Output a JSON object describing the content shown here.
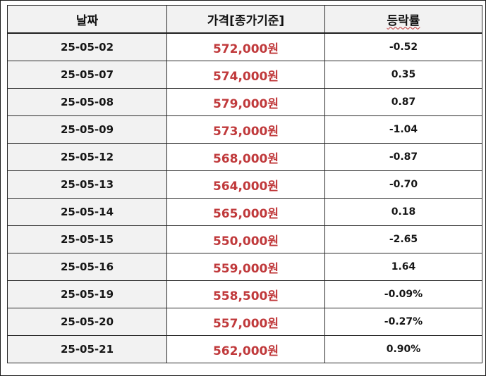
{
  "table": {
    "headers": {
      "date": "날짜",
      "price": "가격[종가기준]",
      "change": "등락률"
    },
    "rows": [
      {
        "date": "25-05-02",
        "price": "572,000원",
        "change": "-0.52"
      },
      {
        "date": "25-05-07",
        "price": "574,000원",
        "change": "0.35"
      },
      {
        "date": "25-05-08",
        "price": "579,000원",
        "change": "0.87"
      },
      {
        "date": "25-05-09",
        "price": "573,000원",
        "change": "-1.04"
      },
      {
        "date": "25-05-12",
        "price": "568,000원",
        "change": "-0.87"
      },
      {
        "date": "25-05-13",
        "price": "564,000원",
        "change": "-0.70"
      },
      {
        "date": "25-05-14",
        "price": "565,000원",
        "change": "0.18"
      },
      {
        "date": "25-05-15",
        "price": "550,000원",
        "change": "-2.65"
      },
      {
        "date": "25-05-16",
        "price": "559,000원",
        "change": "1.64"
      },
      {
        "date": "25-05-19",
        "price": "558,500원",
        "change": "-0.09%"
      },
      {
        "date": "25-05-20",
        "price": "557,000원",
        "change": "-0.27%"
      },
      {
        "date": "25-05-21",
        "price": "562,000원",
        "change": "0.90%"
      }
    ]
  },
  "colors": {
    "price_text": "#c0393b",
    "header_bg": "#f2f2f2",
    "date_bg": "#f2f2f2",
    "border": "#2b2b2b"
  }
}
